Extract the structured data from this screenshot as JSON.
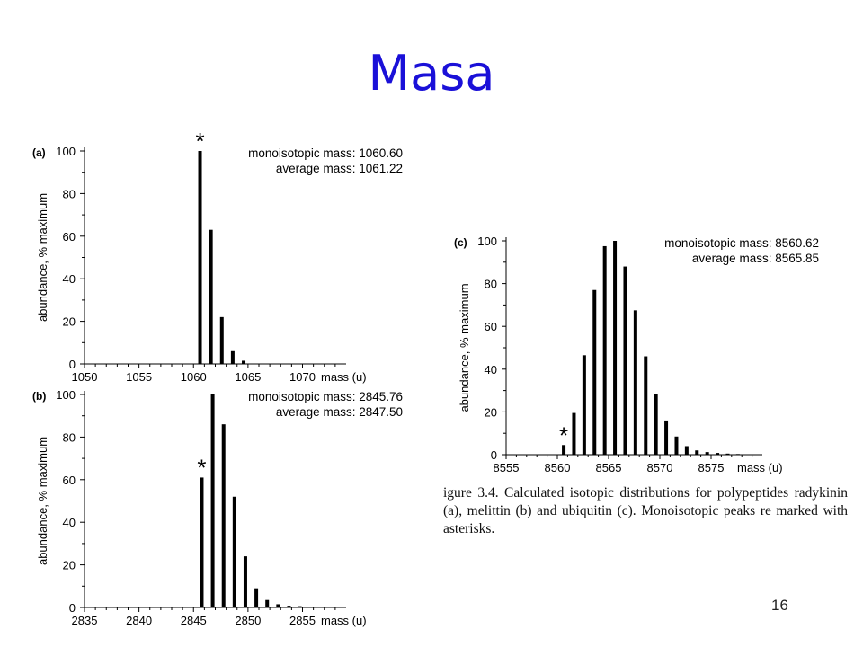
{
  "slide": {
    "title": "Masa",
    "caption": "igure 3.4. Calculated isotopic distributions for polypeptides radykinin (a), melittin (b) and ubiquitin (c). Monoisotopic peaks re marked with asterisks.",
    "page_number": "16"
  },
  "chart_data": [
    {
      "type": "bar",
      "panel_label": "(a)",
      "ylabel": "abundance, % maximum",
      "xlabel": "mass (u)",
      "xlim": [
        1050,
        1074
      ],
      "ylim": [
        0,
        100
      ],
      "xticks": [
        1050,
        1055,
        1060,
        1065,
        1070
      ],
      "yticks": [
        0,
        20,
        40,
        60,
        80,
        100
      ],
      "x": [
        1060.6,
        1061.6,
        1062.6,
        1063.6,
        1064.6
      ],
      "values": [
        100,
        63,
        22,
        6,
        1.5
      ],
      "marker": {
        "symbol": "*",
        "x": 1060.6
      },
      "annotations": [
        "monoisotopic mass: 1060.60",
        "average mass: 1061.22"
      ]
    },
    {
      "type": "bar",
      "panel_label": "(b)",
      "ylabel": "abundance, % maximum",
      "xlabel": "mass (u)",
      "xlim": [
        2835,
        2859
      ],
      "ylim": [
        0,
        100
      ],
      "xticks": [
        2835,
        2840,
        2845,
        2850,
        2855
      ],
      "yticks": [
        0,
        20,
        40,
        60,
        80,
        100
      ],
      "x": [
        2845.76,
        2846.76,
        2847.76,
        2848.76,
        2849.76,
        2850.76,
        2851.76,
        2852.76,
        2853.76,
        2854.76,
        2855.76
      ],
      "values": [
        61,
        100,
        86,
        52,
        24,
        9,
        3.5,
        1.5,
        0.8,
        0.6,
        0.4
      ],
      "marker": {
        "symbol": "*",
        "x": 2845.76
      },
      "annotations": [
        "monoisotopic mass: 2845.76",
        "average mass: 2847.50"
      ]
    },
    {
      "type": "bar",
      "panel_label": "(c)",
      "ylabel": "abundance, % maximum",
      "xlabel": "mass (u)",
      "xlim": [
        8555,
        8580
      ],
      "ylim": [
        0,
        100
      ],
      "xticks": [
        8555,
        8560,
        8565,
        8570,
        8575
      ],
      "yticks": [
        0,
        20,
        40,
        60,
        80,
        100
      ],
      "x": [
        8560.62,
        8561.62,
        8562.62,
        8563.62,
        8564.62,
        8565.62,
        8566.62,
        8567.62,
        8568.62,
        8569.62,
        8570.62,
        8571.62,
        8572.62,
        8573.62,
        8574.62,
        8575.62,
        8576.62,
        8577.62,
        8578.62
      ],
      "values": [
        4.5,
        19.5,
        46.5,
        77,
        97.5,
        100,
        88,
        67.5,
        46,
        28.5,
        16,
        8.5,
        4,
        2,
        1.2,
        0.8,
        0.5,
        0.3,
        0.2
      ],
      "marker": {
        "symbol": "*",
        "x": 8560.62
      },
      "annotations": [
        "monoisotopic mass: 8560.62",
        "average mass: 8565.85"
      ]
    }
  ]
}
